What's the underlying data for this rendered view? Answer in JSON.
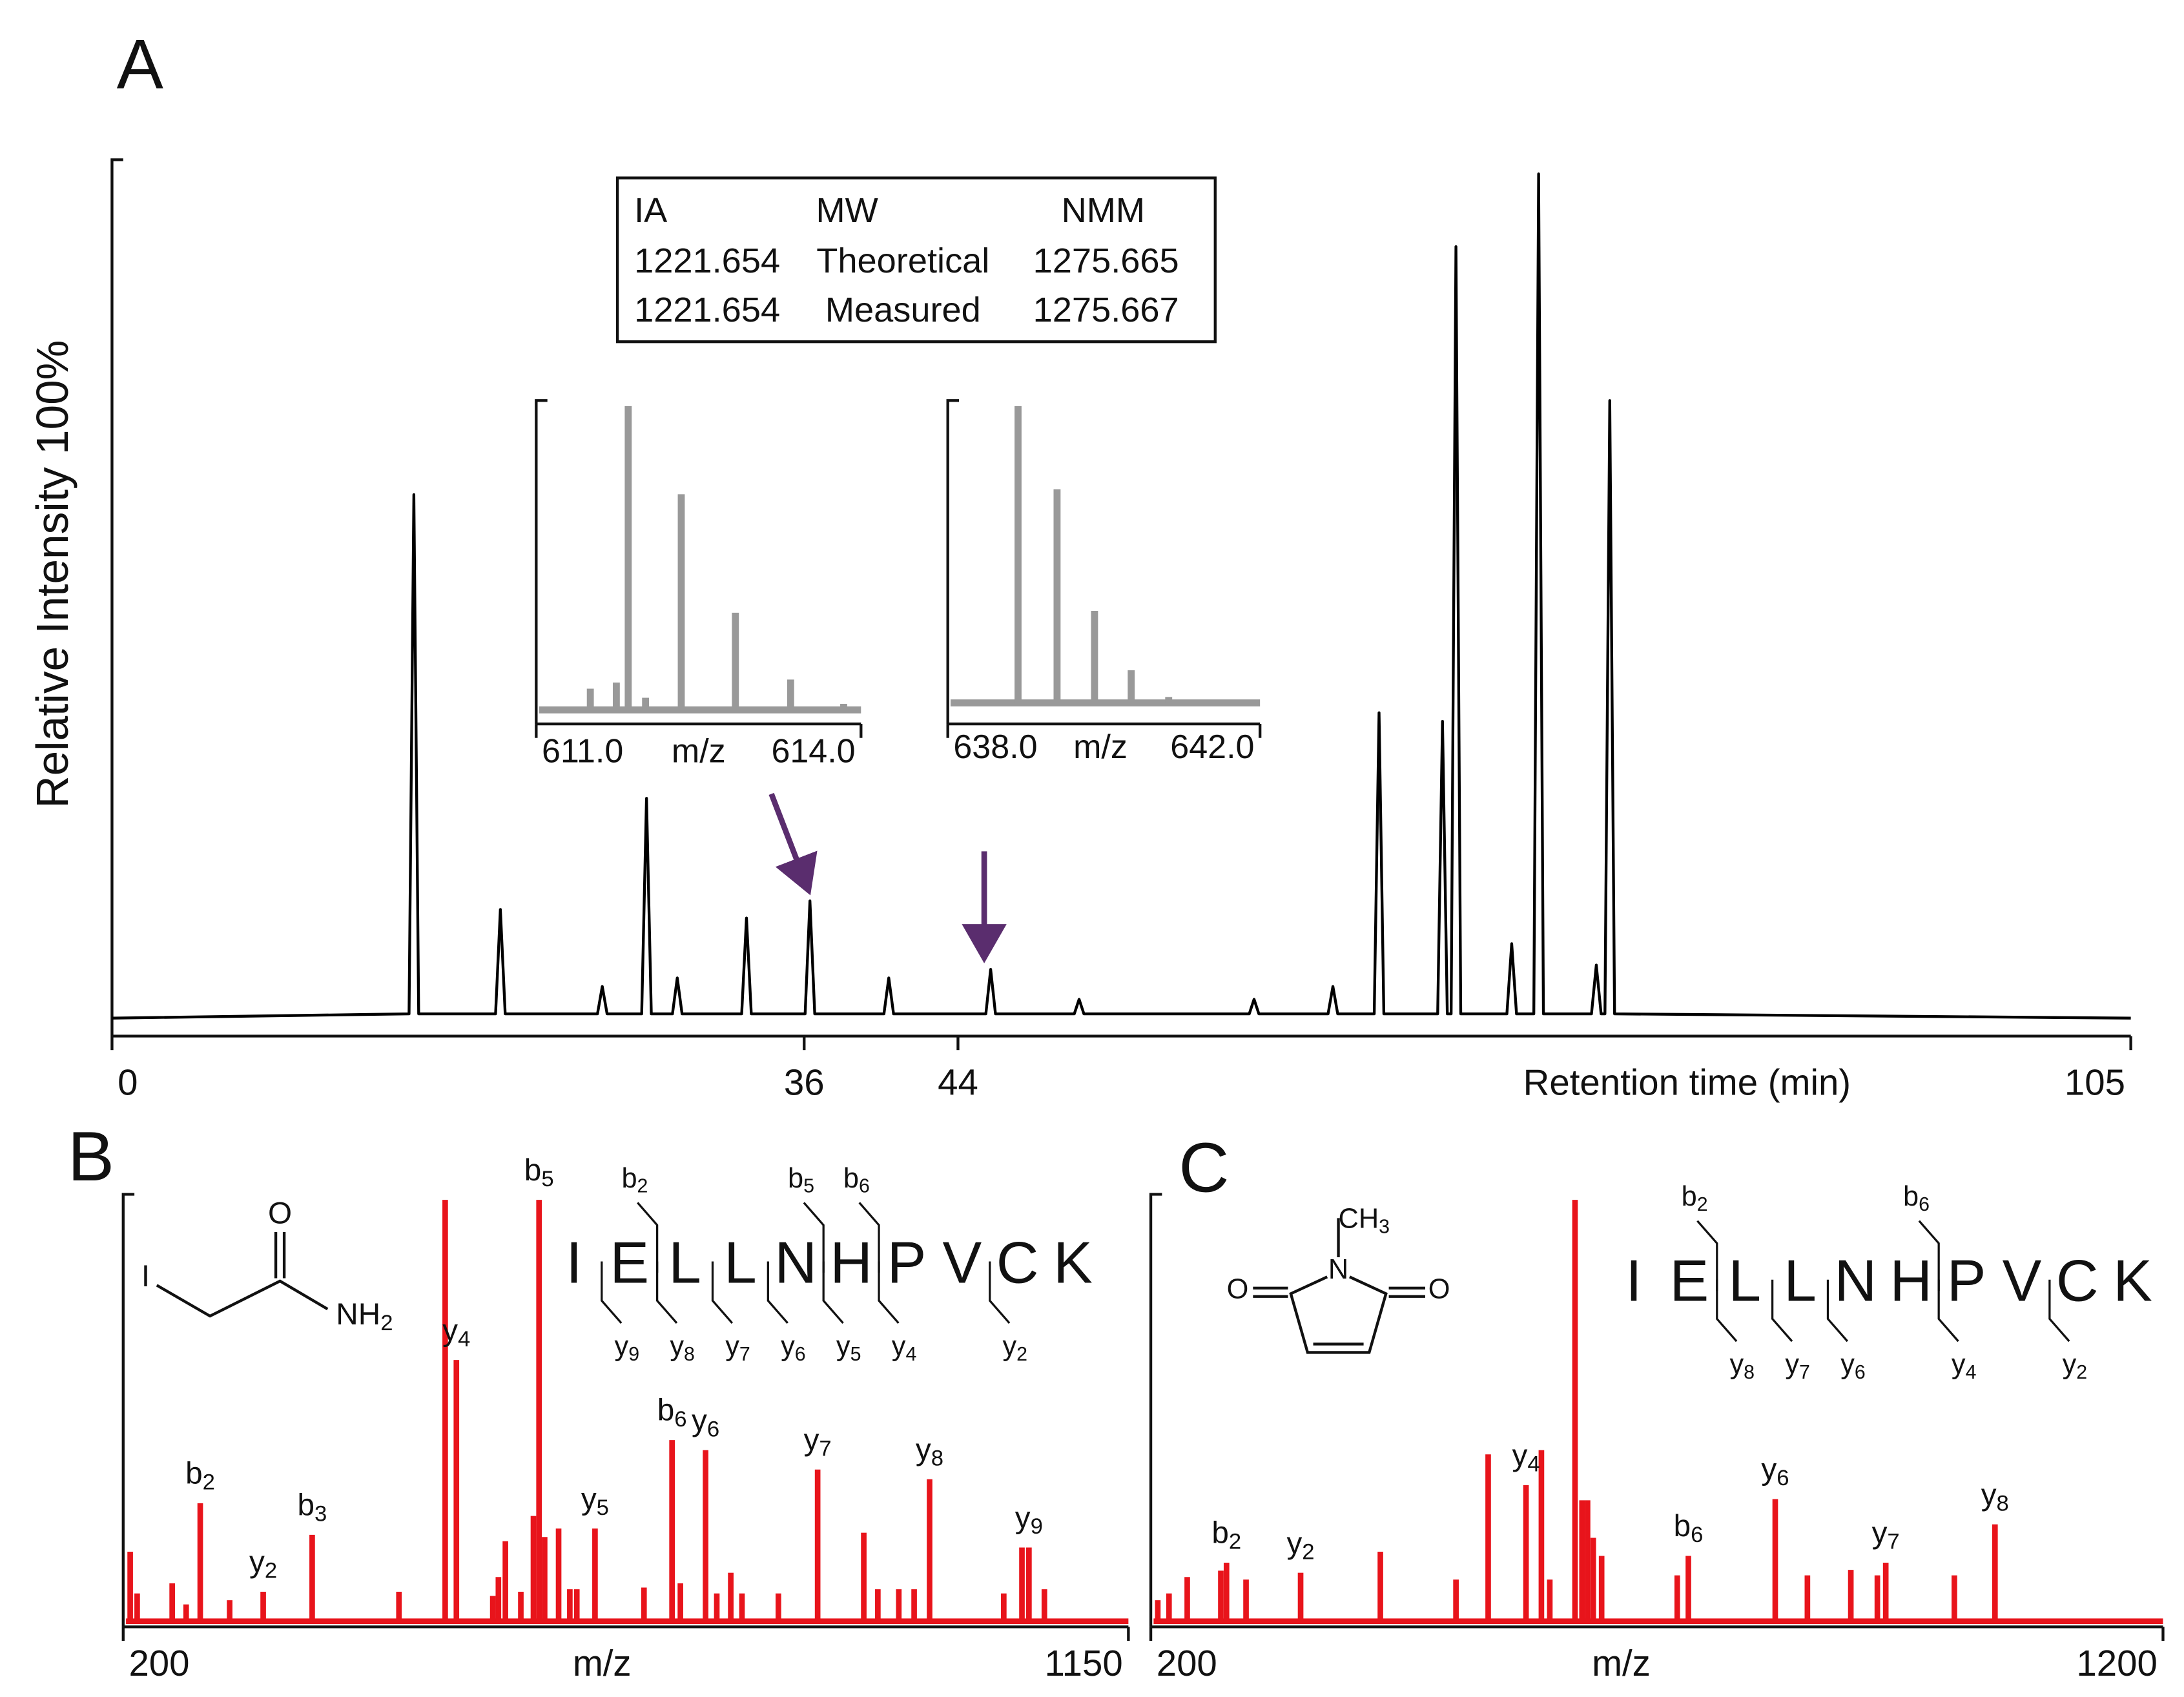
{
  "chart_data": [
    {
      "type": "line",
      "panel": "A",
      "ylabel": "Relative Intensity 100%",
      "xlabel": "Retention time  (min)",
      "xlim": [
        0,
        105
      ],
      "ylim": [
        0,
        100
      ],
      "xticks": [
        0,
        36,
        44,
        105
      ],
      "color": "#000000",
      "x": [
        0,
        15.45,
        15.7,
        15.95,
        19.95,
        20.2,
        20.45,
        25.25,
        25.5,
        25.75,
        27.55,
        27.8,
        28.05,
        29.15,
        29.4,
        29.65,
        32.75,
        33,
        33.25,
        36.05,
        36.3,
        36.55,
        40.15,
        40.4,
        40.65,
        45.45,
        45.7,
        45.95,
        50.05,
        50.3,
        50.55,
        59.15,
        59.4,
        59.65,
        63.25,
        63.5,
        63.75,
        65.65,
        65.9,
        66.15,
        68.95,
        69.2,
        69.45,
        69.65,
        69.9,
        70.15,
        72.55,
        72.8,
        73.05,
        73.95,
        74.2,
        74.45,
        76.95,
        77.2,
        77.45,
        77.65,
        77.9,
        78.15,
        105
      ],
      "values": [
        0.3,
        0.8,
        61.5,
        0.8,
        0.8,
        13,
        0.8,
        0.8,
        4,
        0.8,
        0.8,
        26,
        0.8,
        0.8,
        5,
        0.8,
        0.8,
        12,
        0.8,
        0.8,
        14,
        0.8,
        0.8,
        5,
        0.8,
        0.8,
        6,
        0.8,
        0.8,
        2.5,
        0.8,
        0.8,
        2.5,
        0.8,
        0.8,
        4,
        0.8,
        0.8,
        36,
        0.8,
        0.8,
        35,
        0.8,
        0.8,
        90.5,
        0.8,
        0.8,
        9,
        0.8,
        0.8,
        99,
        0.8,
        0.8,
        6.5,
        0.8,
        0.8,
        72.5,
        0.8,
        0.3
      ],
      "table": {
        "columns": [
          "IA",
          "MW",
          "NMM"
        ],
        "rows": [
          [
            "1221.654",
            "Theoretical",
            "1275.665"
          ],
          [
            "1221.654",
            "Measured",
            "1275.667"
          ]
        ]
      }
    },
    {
      "type": "bar",
      "xlabel": "m/z",
      "xlim": [
        611,
        614
      ],
      "ylim": [
        0,
        100
      ],
      "color": "#999999",
      "xticks": [
        {
          "value": 611,
          "label": "611.0"
        },
        {
          "value": 614,
          "label": "614.0"
        }
      ],
      "x": [
        611.5,
        611.74,
        611.85,
        612.01,
        612.34,
        612.84,
        613.35,
        613.84
      ],
      "values": [
        7,
        9,
        100,
        4,
        71,
        32,
        10,
        2
      ]
    },
    {
      "type": "bar",
      "xlabel": "m/z",
      "xlim": [
        638,
        642
      ],
      "ylim": [
        0,
        100
      ],
      "color": "#999999",
      "xticks": [
        {
          "value": 638,
          "label": "638.0"
        },
        {
          "value": 642,
          "label": "642.0"
        }
      ],
      "x": [
        638.9,
        639.4,
        639.88,
        640.35,
        640.83
      ],
      "values": [
        100,
        72,
        31,
        11,
        2
      ]
    },
    {
      "type": "bar",
      "panel": "B",
      "xlabel": "m/z",
      "xlim": [
        200,
        1150
      ],
      "ylim": [
        0,
        100
      ],
      "xticks": [
        200,
        1150
      ],
      "color": "#e8141b",
      "x": [
        206.6,
        213.2,
        246.3,
        259.5,
        272.8,
        300.6,
        332.3,
        378.6,
        460.6,
        504.3,
        514.9,
        549.3,
        554.6,
        561.2,
        575.8,
        587.7,
        593.0,
        598.3,
        611.5,
        622.1,
        628.7,
        645.9,
        692.2,
        718.7,
        726.6,
        750.4,
        761.0,
        774.2,
        784.8,
        819.2,
        856.3,
        899.9,
        913.2,
        933.0,
        947.5,
        962.1,
        1032.2,
        1049.4,
        1056.0,
        1070.6
      ],
      "values": [
        16.5,
        6.6,
        9,
        4,
        28,
        5,
        7,
        20.5,
        7,
        100,
        62,
        6,
        10.5,
        19,
        7,
        25,
        100,
        20,
        22,
        7.6,
        7.6,
        22,
        8,
        43,
        9,
        40.6,
        6.6,
        11.5,
        6.6,
        6.6,
        36,
        21,
        7.6,
        7.6,
        7.6,
        33.7,
        6.6,
        17.5,
        17.5,
        7.6
      ],
      "annotations": [
        {
          "ion": "b",
          "index": "2",
          "x": 272.8
        },
        {
          "ion": "y",
          "index": "2",
          "x": 332.3
        },
        {
          "ion": "b",
          "index": "3",
          "x": 378.6
        },
        {
          "ion": "y",
          "index": "4",
          "x": 514.9
        },
        {
          "ion": "b",
          "index": "5",
          "x": 593.0
        },
        {
          "ion": "y",
          "index": "5",
          "x": 645.9
        },
        {
          "ion": "b",
          "index": "6",
          "x": 718.7
        },
        {
          "ion": "y",
          "index": "6",
          "x": 750.4
        },
        {
          "ion": "y",
          "index": "7",
          "x": 856.3
        },
        {
          "ion": "y",
          "index": "8",
          "x": 962.1
        },
        {
          "ion": "y",
          "index": "9",
          "x": 1056.0
        }
      ],
      "sequence": [
        "I",
        "E",
        "L",
        "L",
        "N",
        "H",
        "P",
        "V",
        "C",
        "K"
      ],
      "fragments": [
        {
          "ion": "b",
          "index": "2"
        },
        {
          "ion": "b",
          "index": "5"
        },
        {
          "ion": "b",
          "index": "6"
        },
        {
          "ion": "y",
          "index": "9"
        },
        {
          "ion": "y",
          "index": "8"
        },
        {
          "ion": "y",
          "index": "7"
        },
        {
          "ion": "y",
          "index": "6"
        },
        {
          "ion": "y",
          "index": "5"
        },
        {
          "ion": "y",
          "index": "4"
        },
        {
          "ion": "y",
          "index": "2"
        }
      ],
      "structure": [
        "I",
        "O",
        "NH",
        "2"
      ]
    },
    {
      "type": "bar",
      "panel": "C",
      "xlabel": "m/z",
      "xlim": [
        200,
        1200
      ],
      "ylim": [
        0,
        100
      ],
      "xticks": [
        200,
        1200
      ],
      "color": "#e8141b",
      "x": [
        206.9,
        218.0,
        236.0,
        269.2,
        274.8,
        294.1,
        348.0,
        426.8,
        501.5,
        533.3,
        570.7,
        585.9,
        594.2,
        619.1,
        626.0,
        631.5,
        637.1,
        645.4,
        720.1,
        731.1,
        816.9,
        848.7,
        891.6,
        917.8,
        926.1,
        993.9,
        1034.0
      ],
      "values": [
        5,
        6.6,
        10.5,
        12,
        13.9,
        9.9,
        11.5,
        16.5,
        9.9,
        39.6,
        32.3,
        40.6,
        9.9,
        100,
        28.7,
        28.7,
        19.8,
        15.5,
        10.9,
        15.5,
        29,
        10.9,
        12.2,
        10.9,
        13.9,
        10.9,
        23
      ],
      "annotations": [
        {
          "ion": "b",
          "index": "2",
          "x": 274.8
        },
        {
          "ion": "y",
          "index": "2",
          "x": 348.0
        },
        {
          "ion": "y",
          "index": "4",
          "x": 570.7
        },
        {
          "ion": "b",
          "index": "6",
          "x": 731.1
        },
        {
          "ion": "y",
          "index": "6",
          "x": 816.9
        },
        {
          "ion": "y",
          "index": "7",
          "x": 926.1
        },
        {
          "ion": "y",
          "index": "8",
          "x": 1034.0
        }
      ],
      "sequence": [
        "I",
        "E",
        "L",
        "L",
        "N",
        "H",
        "P",
        "V",
        "C",
        "K"
      ],
      "fragments": [
        {
          "ion": "b",
          "index": "2"
        },
        {
          "ion": "b",
          "index": "6"
        },
        {
          "ion": "y",
          "index": "8"
        },
        {
          "ion": "y",
          "index": "7"
        },
        {
          "ion": "y",
          "index": "6"
        },
        {
          "ion": "y",
          "index": "4"
        },
        {
          "ion": "y",
          "index": "2"
        }
      ],
      "structure": [
        "CH",
        "3",
        "N",
        "O",
        "O"
      ]
    }
  ]
}
